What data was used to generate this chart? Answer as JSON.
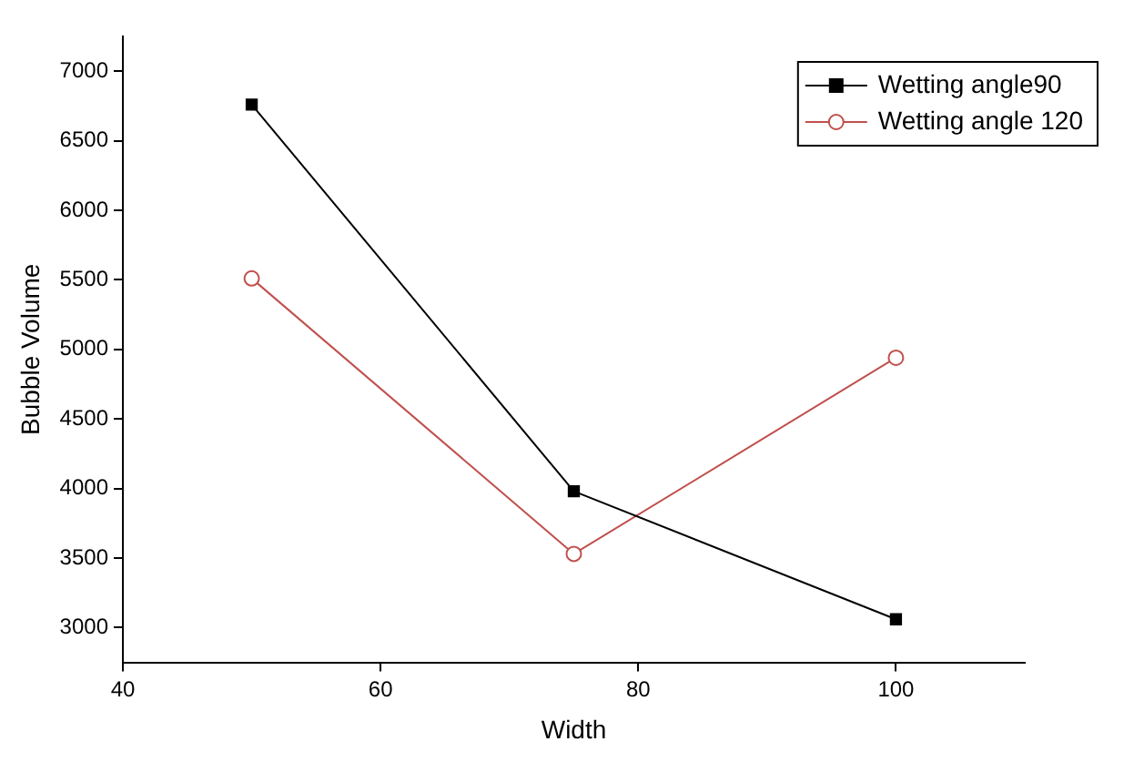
{
  "chart_data": {
    "type": "line",
    "xlabel": "Width",
    "ylabel": "Bubble Volume",
    "x": [
      50,
      75,
      100
    ],
    "series": [
      {
        "name": "Wetting angle90",
        "color": "#000000",
        "values": [
          6760,
          3980,
          3060
        ],
        "marker": "square"
      },
      {
        "name": "Wetting angle 120",
        "color": "#c0504d",
        "values": [
          5510,
          3530,
          4940
        ],
        "marker": "circle"
      }
    ],
    "xlim": [
      40,
      110
    ],
    "xticks": [
      40,
      60,
      80,
      100
    ],
    "ylim": [
      2750,
      7250
    ],
    "yticks": [
      3000,
      3500,
      4000,
      4500,
      5000,
      5500,
      6000,
      6500,
      7000
    ],
    "grid": false,
    "legend": "top right"
  }
}
